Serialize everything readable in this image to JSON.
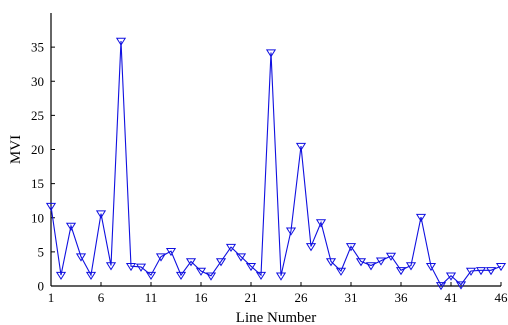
{
  "chart_data": {
    "type": "line",
    "xlabel": "Line Number",
    "ylabel": "MVI",
    "xlim": [
      1,
      46
    ],
    "ylim": [
      0,
      40
    ],
    "x_ticks": [
      1,
      6,
      11,
      16,
      21,
      26,
      31,
      36,
      41,
      46
    ],
    "y_ticks": [
      0,
      5,
      10,
      15,
      20,
      25,
      30,
      35
    ],
    "x_tick_labels": [
      "1",
      "6",
      "11",
      "16",
      "21",
      "26",
      "31",
      "36",
      "41",
      "46"
    ],
    "y_tick_labels": [
      "0",
      "5",
      "10",
      "15",
      "20",
      "25",
      "30",
      "35"
    ],
    "grid": false,
    "marker": "triangle-down",
    "series": [
      {
        "color": "#1010e0",
        "x": [
          1,
          2,
          3,
          4,
          5,
          6,
          7,
          8,
          9,
          10,
          11,
          12,
          13,
          14,
          15,
          16,
          17,
          18,
          19,
          20,
          21,
          22,
          23,
          24,
          25,
          26,
          27,
          28,
          29,
          30,
          31,
          32,
          33,
          34,
          35,
          36,
          37,
          38,
          39,
          40,
          41,
          42,
          43,
          44,
          45,
          46
        ],
        "values": [
          11.7,
          1.6,
          8.8,
          4.3,
          1.6,
          10.6,
          3.0,
          35.9,
          2.9,
          2.8,
          1.6,
          4.3,
          5.1,
          1.6,
          3.6,
          2.2,
          1.5,
          3.6,
          5.7,
          4.3,
          2.9,
          1.6,
          34.2,
          1.5,
          8.1,
          20.5,
          5.8,
          9.3,
          3.6,
          2.2,
          5.8,
          3.6,
          3.0,
          3.7,
          4.4,
          2.3,
          3.0,
          10.1,
          2.9,
          0.1,
          1.5,
          0.2,
          2.2,
          2.3,
          2.3,
          2.9
        ]
      }
    ]
  }
}
